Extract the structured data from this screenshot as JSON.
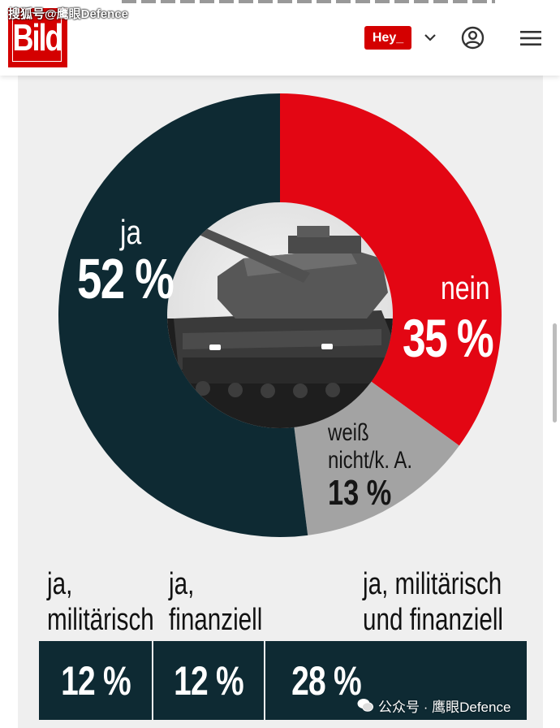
{
  "watermarks": {
    "top": "搜狐号@鹰眼Defence",
    "bottom": "公众号 · 鹰眼Defence"
  },
  "header": {
    "logo_text": "Bild",
    "hey_label": "Hey_"
  },
  "icons": {
    "dropdown": "chevron-down-icon",
    "account": "user-circle-icon",
    "menu": "hamburger-menu-icon",
    "wechat": "wechat-icon"
  },
  "colors": {
    "ja": "#0e2a33",
    "nein": "#e30613",
    "weiss": "#a3a3a3",
    "brand": "#d40000",
    "background": "#efefef"
  },
  "chart_data": [
    {
      "type": "pie",
      "title": "",
      "categories": [
        "ja",
        "nein",
        "weiß nicht/k. A."
      ],
      "values": [
        52,
        35,
        13
      ],
      "value_labels": [
        "52 %",
        "35 %",
        "13 %"
      ],
      "label_lines": {
        "weiss": "weiß\nnicht/k. A."
      },
      "start": "top",
      "direction": "clockwise",
      "order": [
        "nein",
        "weiss",
        "ja"
      ]
    },
    {
      "type": "table",
      "categories": [
        "ja,\nmilitärisch",
        "ja,\nfinanziell",
        "ja, militärisch\nund finanziell"
      ],
      "values": [
        12,
        12,
        28
      ],
      "value_labels": [
        "12 %",
        "12 %",
        "28 %"
      ]
    }
  ]
}
